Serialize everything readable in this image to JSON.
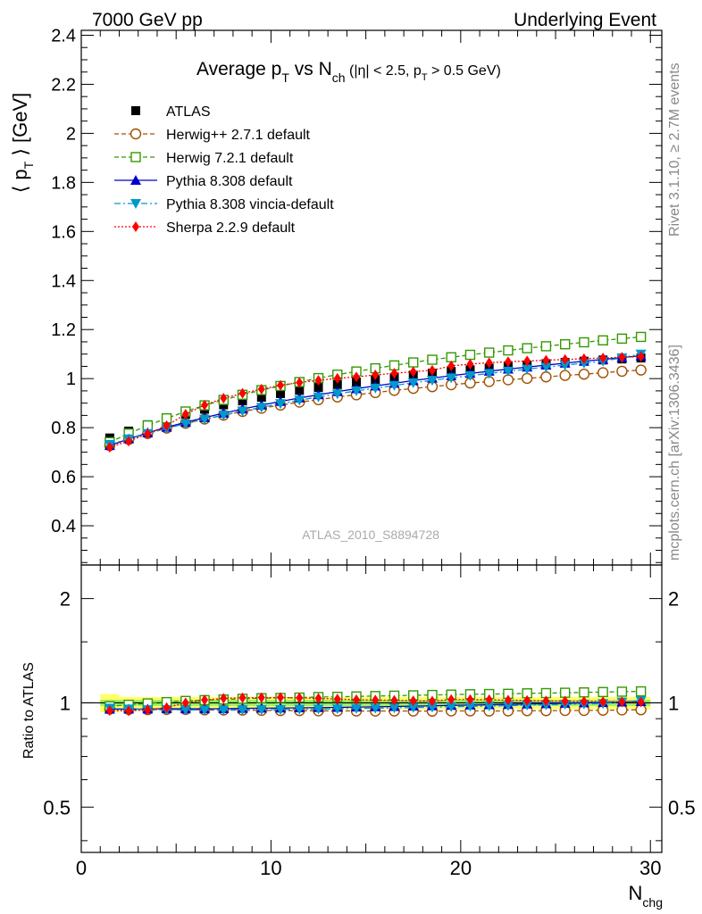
{
  "header": {
    "left": "7000 GeV pp",
    "right": "Underlying Event",
    "title_main": "Average p",
    "title_sub_T": "T",
    "title_vs": " vs N",
    "title_sub_ch": "ch",
    "title_cond_a": " (|η| < 2.5, p",
    "title_cond_sub": "T",
    "title_cond_b": " > 0.5 GeV)"
  },
  "side": {
    "rivet": "Rivet 3.1.10, ≥ 2.7M events",
    "mcplots": "mcplots.cern.ch [arXiv:1306.3436]"
  },
  "watermark": "ATLAS_2010_S8894728",
  "axes": {
    "ylabel_pre": "⟨ p",
    "ylabel_sub": "T",
    "ylabel_post": " ⟩ [GeV]",
    "xlabel": "N",
    "xlabel_sub": "chg",
    "ratio_ylabel": "Ratio to ATLAS",
    "main_yticks": [
      "0.4",
      "0.6",
      "0.8",
      "1",
      "1.2",
      "1.4",
      "1.6",
      "1.8",
      "2",
      "2.2",
      "2.4"
    ],
    "ratio_yticks": [
      "0.5",
      "1",
      "2"
    ],
    "xticks": [
      "0",
      "10",
      "20",
      "30"
    ]
  },
  "chart_data": {
    "type": "scatter",
    "title": "Average pT vs Nch (|η| < 2.5, pT > 0.5 GeV)",
    "xlabel": "Nchg",
    "ylabel": "⟨ pT ⟩ [GeV]",
    "xlim": [
      0,
      30.6
    ],
    "ylim": [
      0.24,
      2.42
    ],
    "ratio_ylim": [
      0.37,
      2.5
    ],
    "ratio_scale": "log",
    "legend_position": "top-left",
    "x": [
      1.5,
      2.5,
      3.5,
      4.5,
      5.5,
      6.5,
      7.5,
      8.5,
      9.5,
      10.5,
      11.5,
      12.5,
      13.5,
      14.5,
      15.5,
      16.5,
      17.5,
      18.5,
      19.5,
      20.5,
      21.5,
      22.5,
      23.5,
      24.5,
      25.5,
      26.5,
      27.5,
      28.5,
      29.5
    ],
    "series": [
      {
        "name": "ATLAS",
        "color": "#000000",
        "marker": "square-filled",
        "line": "none",
        "values": [
          0.758,
          0.786,
          0.812,
          0.834,
          0.855,
          0.875,
          0.893,
          0.909,
          0.924,
          0.939,
          0.952,
          0.964,
          0.976,
          0.986,
          0.996,
          1.005,
          1.014,
          1.022,
          1.029,
          1.036,
          1.043,
          1.05,
          1.055,
          1.061,
          1.066,
          1.071,
          1.076,
          1.08,
          1.084
        ]
      },
      {
        "name": "Herwig++ 2.7.1 default",
        "color": "#a05000",
        "marker": "circle-open",
        "line": "dash",
        "values": [
          0.727,
          0.752,
          0.776,
          0.798,
          0.818,
          0.835,
          0.851,
          0.866,
          0.879,
          0.892,
          0.904,
          0.914,
          0.925,
          0.934,
          0.943,
          0.952,
          0.96,
          0.967,
          0.975,
          0.982,
          0.988,
          0.995,
          1.001,
          1.007,
          1.013,
          1.018,
          1.024,
          1.03,
          1.035
        ]
      },
      {
        "name": "Herwig 7.2.1 default",
        "color": "#339900",
        "marker": "square-open",
        "line": "dash",
        "values": [
          0.741,
          0.776,
          0.809,
          0.838,
          0.866,
          0.891,
          0.913,
          0.934,
          0.953,
          0.97,
          0.986,
          1.002,
          1.016,
          1.029,
          1.042,
          1.054,
          1.066,
          1.077,
          1.087,
          1.097,
          1.106,
          1.115,
          1.124,
          1.132,
          1.14,
          1.148,
          1.156,
          1.163,
          1.17
        ]
      },
      {
        "name": "Pythia 8.308 default",
        "color": "#0000cc",
        "marker": "triangle-up",
        "line": "solid",
        "values": [
          0.727,
          0.754,
          0.779,
          0.802,
          0.822,
          0.841,
          0.859,
          0.876,
          0.892,
          0.907,
          0.921,
          0.934,
          0.947,
          0.959,
          0.97,
          0.981,
          0.992,
          1.002,
          1.012,
          1.021,
          1.03,
          1.039,
          1.047,
          1.055,
          1.063,
          1.071,
          1.078,
          1.086,
          1.093
        ]
      },
      {
        "name": "Pythia 8.308 vincia-default",
        "color": "#0099cc",
        "marker": "triangle-down",
        "line": "dashdot",
        "values": [
          0.732,
          0.754,
          0.776,
          0.797,
          0.816,
          0.834,
          0.851,
          0.868,
          0.883,
          0.898,
          0.912,
          0.925,
          0.938,
          0.95,
          0.961,
          0.972,
          0.983,
          0.993,
          1.003,
          1.012,
          1.021,
          1.03,
          1.039,
          1.047,
          1.055,
          1.063,
          1.071,
          1.085,
          1.1
        ]
      },
      {
        "name": "Sherpa 2.2.9 default",
        "color": "#ff0000",
        "marker": "diamond",
        "line": "dot",
        "values": [
          0.72,
          0.745,
          0.775,
          0.808,
          0.855,
          0.892,
          0.92,
          0.94,
          0.957,
          0.973,
          0.984,
          0.993,
          1.001,
          1.007,
          1.015,
          1.022,
          1.028,
          1.034,
          1.052,
          1.059,
          1.065,
          1.069,
          1.072,
          1.075,
          1.078,
          1.081,
          1.084,
          1.087,
          1.09
        ]
      }
    ]
  },
  "legend": [
    {
      "label": "ATLAS"
    },
    {
      "label": "Herwig++ 2.7.1 default"
    },
    {
      "label": "Herwig 7.2.1 default"
    },
    {
      "label": "Pythia 8.308 default"
    },
    {
      "label": "Pythia 8.308 vincia-default"
    },
    {
      "label": "Sherpa 2.2.9 default"
    }
  ]
}
